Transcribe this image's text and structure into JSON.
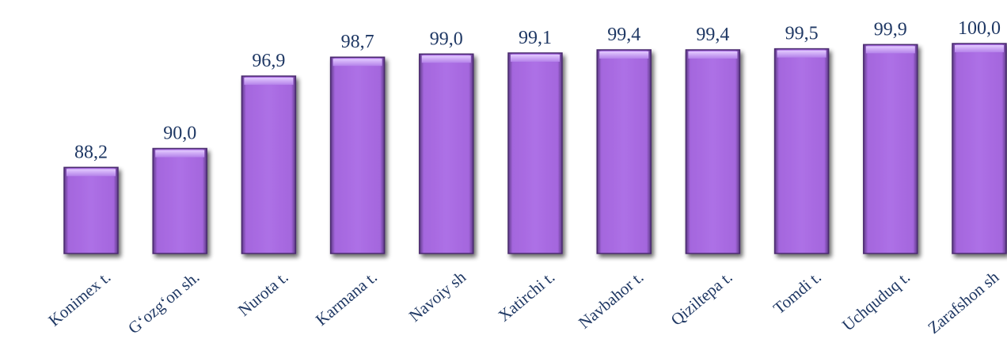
{
  "chart_data": {
    "type": "bar",
    "categories": [
      "Konimex t.",
      "G‘ozg‘on sh.",
      "Nurota t.",
      "Karmana t.",
      "Navoiy sh",
      "Xatirchi t.",
      "Navbahor t.",
      "Qiziltepa t.",
      "Tomdi t.",
      "Uchquduq t.",
      "Zarafshon sh"
    ],
    "values": [
      88.2,
      90.0,
      96.9,
      98.7,
      99.0,
      99.1,
      99.4,
      99.4,
      99.5,
      99.9,
      100.0
    ],
    "value_labels": [
      "88,2",
      "90,0",
      "96,9",
      "98,7",
      "99,0",
      "99,1",
      "99,4",
      "99,4",
      "99,5",
      "99,9",
      "100,0"
    ],
    "title": "",
    "xlabel": "",
    "ylabel": "",
    "ylim": [
      80,
      100
    ],
    "grid": false,
    "legend": "none",
    "colors": {
      "bar": "#a466dd",
      "bar_top": "#c79af0",
      "bar_edge": "#4a2a6e",
      "label": "#1f3864"
    }
  }
}
